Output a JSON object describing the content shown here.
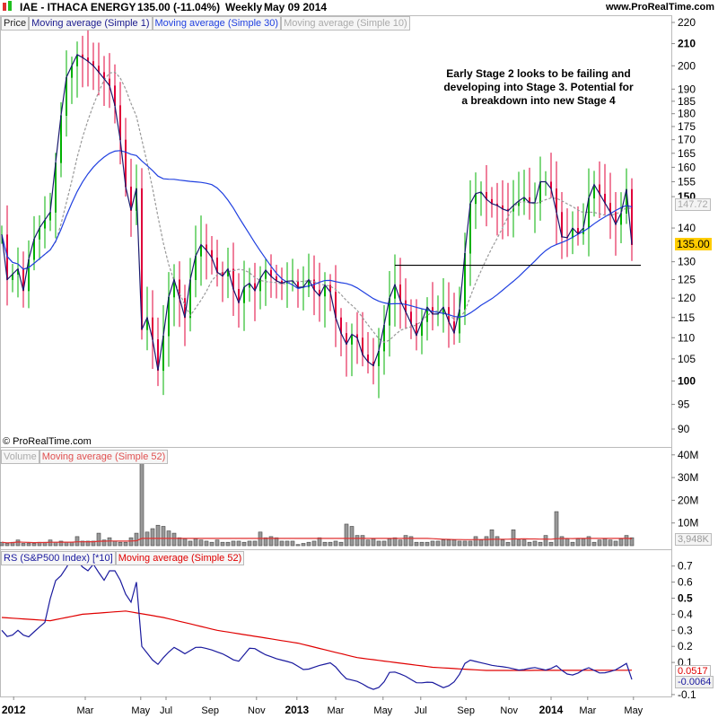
{
  "header": {
    "symbol": "IAE - ITHACA ENERGY",
    "quote": "135.00 (-11.04%)",
    "period": "Weekly",
    "date": "May 09 2014",
    "site": "www.ProRealTime.com"
  },
  "price_panel": {
    "legend": [
      "Price",
      "Moving average (Simple 1)",
      "Moving average (Simple 30)",
      "Moving average (Simple 10)"
    ],
    "copyright": "© ProRealTime.com",
    "annotation": [
      "Early Stage 2 looks to be failing and",
      "developing into Stage 3. Potential for",
      "a breakdown into new Stage 4"
    ],
    "last_price_label": "135.00",
    "ma10_label": "147.72"
  },
  "volume_panel": {
    "legend": [
      "Volume",
      "Moving average (Simple 52)"
    ],
    "last_label": "3,948K"
  },
  "rs_panel": {
    "legend": [
      "RS (S&P500 Index) [*10]",
      "Moving average (Simple 52)"
    ],
    "ma_label": "0.0517",
    "rs_label": "-0.0064"
  },
  "colors": {
    "up": "#00b000",
    "down": "#e0003a",
    "close_line": "#1a1a6e",
    "ma30": "#2040e0",
    "ma10": "#999999",
    "vol_ma": "#e03030",
    "rs": "#1a1a9e",
    "rs_ma": "#e00000",
    "last_bg": "#ffcc00"
  },
  "chart_data": {
    "type": "line",
    "title": "IAE - ITHACA ENERGY Weekly",
    "x_unit": "week index (0 = early Dec 2011, 117 = May 09 2014)",
    "x_ticks": [
      {
        "w": 2.2,
        "label": "2012",
        "bold": true
      },
      {
        "w": 15.5,
        "label": "Mar"
      },
      {
        "w": 25.8,
        "label": "May"
      },
      {
        "w": 30.5,
        "label": "Jul"
      },
      {
        "w": 38.7,
        "label": "Sep"
      },
      {
        "w": 47.3,
        "label": "Nov"
      },
      {
        "w": 54.8,
        "label": "2013",
        "bold": true
      },
      {
        "w": 62,
        "label": "Mar"
      },
      {
        "w": 70.8,
        "label": "May"
      },
      {
        "w": 77.8,
        "label": "Jul"
      },
      {
        "w": 86.2,
        "label": "Sep"
      },
      {
        "w": 94.2,
        "label": "Nov"
      },
      {
        "w": 102,
        "label": "2014",
        "bold": true
      },
      {
        "w": 108.8,
        "label": "Mar"
      },
      {
        "w": 117.3,
        "label": "May"
      }
    ],
    "price_ticks": [
      220,
      210,
      200,
      190,
      185,
      180,
      175,
      170,
      165,
      160,
      155,
      150,
      140,
      130,
      125,
      120,
      115,
      110,
      105,
      100,
      95,
      90
    ],
    "price_bold_ticks": [
      210,
      150,
      100
    ],
    "price_range": [
      90,
      220
    ],
    "price_scale": "log",
    "close_keypoints": [
      [
        0,
        138
      ],
      [
        1,
        125
      ],
      [
        3,
        128
      ],
      [
        4,
        122
      ],
      [
        5.5,
        135
      ],
      [
        7,
        140
      ],
      [
        9,
        145
      ],
      [
        10.5,
        170
      ],
      [
        11.3,
        185
      ],
      [
        12,
        195
      ],
      [
        14,
        205
      ],
      [
        15.5,
        203
      ],
      [
        17,
        200
      ],
      [
        18.8,
        195
      ],
      [
        20.5,
        190
      ],
      [
        22,
        170
      ],
      [
        23.8,
        140
      ],
      [
        24.7,
        165
      ],
      [
        26,
        112
      ],
      [
        27,
        115
      ],
      [
        28.3,
        108
      ],
      [
        29.3,
        100
      ],
      [
        30.5,
        118
      ],
      [
        32,
        125
      ],
      [
        34,
        115
      ],
      [
        35.5,
        130
      ],
      [
        37,
        135
      ],
      [
        38.8,
        132
      ],
      [
        40.5,
        125
      ],
      [
        42,
        128
      ],
      [
        43.8,
        118
      ],
      [
        45.5,
        125
      ],
      [
        47,
        122
      ],
      [
        48.8,
        128
      ],
      [
        50.5,
        125
      ],
      [
        52,
        124
      ],
      [
        53.8,
        125
      ],
      [
        55.5,
        122
      ],
      [
        57,
        125
      ],
      [
        58.8,
        120
      ],
      [
        60.5,
        125
      ],
      [
        62,
        115
      ],
      [
        63.8,
        108
      ],
      [
        65.5,
        112
      ],
      [
        67,
        106
      ],
      [
        68.8,
        103
      ],
      [
        69.7,
        105
      ],
      [
        71.3,
        115
      ],
      [
        72.7,
        125
      ],
      [
        73.8,
        120
      ],
      [
        75.5,
        115
      ],
      [
        77.2,
        110
      ],
      [
        78.8,
        118
      ],
      [
        80.5,
        115
      ],
      [
        82.2,
        118
      ],
      [
        83.8,
        110
      ],
      [
        85.5,
        120
      ],
      [
        86.3,
        140
      ],
      [
        87.2,
        150
      ],
      [
        88.8,
        152
      ],
      [
        90.5,
        148
      ],
      [
        92.2,
        147
      ],
      [
        93.8,
        145
      ],
      [
        95.5,
        148
      ],
      [
        97.2,
        150
      ],
      [
        98.8,
        146
      ],
      [
        99.7,
        155
      ],
      [
        101.7,
        155
      ],
      [
        103,
        145
      ],
      [
        104.3,
        135
      ],
      [
        106,
        140
      ],
      [
        107.7,
        137
      ],
      [
        108.8,
        148
      ],
      [
        109.7,
        155
      ],
      [
        111.3,
        150
      ],
      [
        113,
        145
      ],
      [
        114.3,
        140
      ],
      [
        115.5,
        148
      ],
      [
        116.5,
        157
      ],
      [
        117,
        135
      ]
    ],
    "support_line": {
      "value": 129,
      "from_week": 73,
      "to_week": 119
    },
    "volume_M": [
      1.5,
      1,
      1.5,
      2.5,
      1,
      1,
      1,
      1.5,
      1.5,
      2.5,
      1.5,
      2,
      1.5,
      1.5,
      4,
      2,
      2,
      2,
      5.5,
      2.5,
      3.5,
      2,
      1.5,
      1.5,
      3.5,
      5.5,
      37,
      6,
      7.5,
      9,
      8.5,
      6.5,
      5.5,
      3.5,
      3,
      2,
      3,
      2.5,
      2,
      1.5,
      2.5,
      1.5,
      1.5,
      2,
      2,
      1.5,
      2,
      2,
      6,
      3.5,
      4,
      3.5,
      2,
      2,
      2,
      0.5,
      1,
      1.5,
      2,
      3.5,
      1.5,
      1.5,
      2,
      1.5,
      9.5,
      8.5,
      4.5,
      4.5,
      2.5,
      3,
      2,
      2,
      3,
      3.5,
      2.5,
      4.5,
      4,
      1.5,
      1.5,
      1.5,
      2,
      2,
      2.5,
      2.5,
      2.5,
      2,
      2,
      2,
      4,
      2.5,
      4,
      7,
      4,
      2.5,
      1.5,
      7,
      2.5,
      2.5,
      1.5,
      2,
      1.5,
      4.5,
      1.5,
      15,
      4,
      3,
      1.5,
      3,
      3,
      4,
      1.5,
      2.5,
      3,
      2.5,
      2,
      3,
      4.5,
      3.5
    ],
    "volume_ticks": [
      {
        "v": 40,
        "label": "40M"
      },
      {
        "v": 30,
        "label": "30M"
      },
      {
        "v": 20,
        "label": "20M"
      },
      {
        "v": 10,
        "label": "10M"
      }
    ],
    "volume_range": [
      0,
      41
    ],
    "rs_keypoints": [
      [
        0,
        0.3
      ],
      [
        1.3,
        0.25
      ],
      [
        3,
        0.3
      ],
      [
        4.7,
        0.25
      ],
      [
        6.3,
        0.3
      ],
      [
        8,
        0.35
      ],
      [
        9.7,
        0.6
      ],
      [
        11.3,
        0.65
      ],
      [
        13,
        0.75
      ],
      [
        14.7,
        0.72
      ],
      [
        15.5,
        0.65
      ],
      [
        17.2,
        0.72
      ],
      [
        18.8,
        0.6
      ],
      [
        20.5,
        0.7
      ],
      [
        22.2,
        0.6
      ],
      [
        23.8,
        0.45
      ],
      [
        25,
        0.6
      ],
      [
        26,
        0.2
      ],
      [
        27.2,
        0.15
      ],
      [
        28.8,
        0.08
      ],
      [
        30.5,
        0.15
      ],
      [
        32.2,
        0.2
      ],
      [
        33.8,
        0.15
      ],
      [
        36.3,
        0.2
      ],
      [
        38.8,
        0.18
      ],
      [
        41.3,
        0.15
      ],
      [
        43.8,
        0.1
      ],
      [
        46.3,
        0.2
      ],
      [
        48.8,
        0.15
      ],
      [
        51.3,
        0.12
      ],
      [
        53.8,
        0.1
      ],
      [
        56.3,
        0.05
      ],
      [
        58.8,
        0.08
      ],
      [
        61.3,
        0.1
      ],
      [
        63.8,
        0
      ],
      [
        66.3,
        -0.02
      ],
      [
        68.8,
        -0.07
      ],
      [
        70.5,
        -0.05
      ],
      [
        72.2,
        0.05
      ],
      [
        74.7,
        0.02
      ],
      [
        77.2,
        -0.03
      ],
      [
        79.7,
        -0.02
      ],
      [
        82.2,
        -0.06
      ],
      [
        83.8,
        -0.03
      ],
      [
        85.5,
        0.05
      ],
      [
        86.3,
        0.12
      ],
      [
        88.8,
        0.1
      ],
      [
        91.3,
        0.08
      ],
      [
        93.8,
        0.07
      ],
      [
        96.3,
        0.05
      ],
      [
        98.8,
        0.07
      ],
      [
        101.3,
        0.05
      ],
      [
        103,
        0.08
      ],
      [
        104.7,
        0.03
      ],
      [
        106.3,
        0.02
      ],
      [
        108.8,
        0.07
      ],
      [
        111.3,
        0.03
      ],
      [
        113.8,
        0.05
      ],
      [
        116.3,
        0.1
      ],
      [
        117,
        -0.0064
      ]
    ],
    "rs_ma_keypoints": [
      [
        0,
        0.38
      ],
      [
        9,
        0.36
      ],
      [
        15,
        0.4
      ],
      [
        23,
        0.42
      ],
      [
        30,
        0.38
      ],
      [
        40,
        0.3
      ],
      [
        55,
        0.22
      ],
      [
        66,
        0.13
      ],
      [
        80,
        0.07
      ],
      [
        90,
        0.05
      ],
      [
        117,
        0.0517
      ]
    ],
    "rs_ticks": [
      0.7,
      0.6,
      0.5,
      0.4,
      0.3,
      0.2,
      0.1,
      -0.1
    ],
    "rs_range": [
      -0.12,
      0.75
    ]
  }
}
